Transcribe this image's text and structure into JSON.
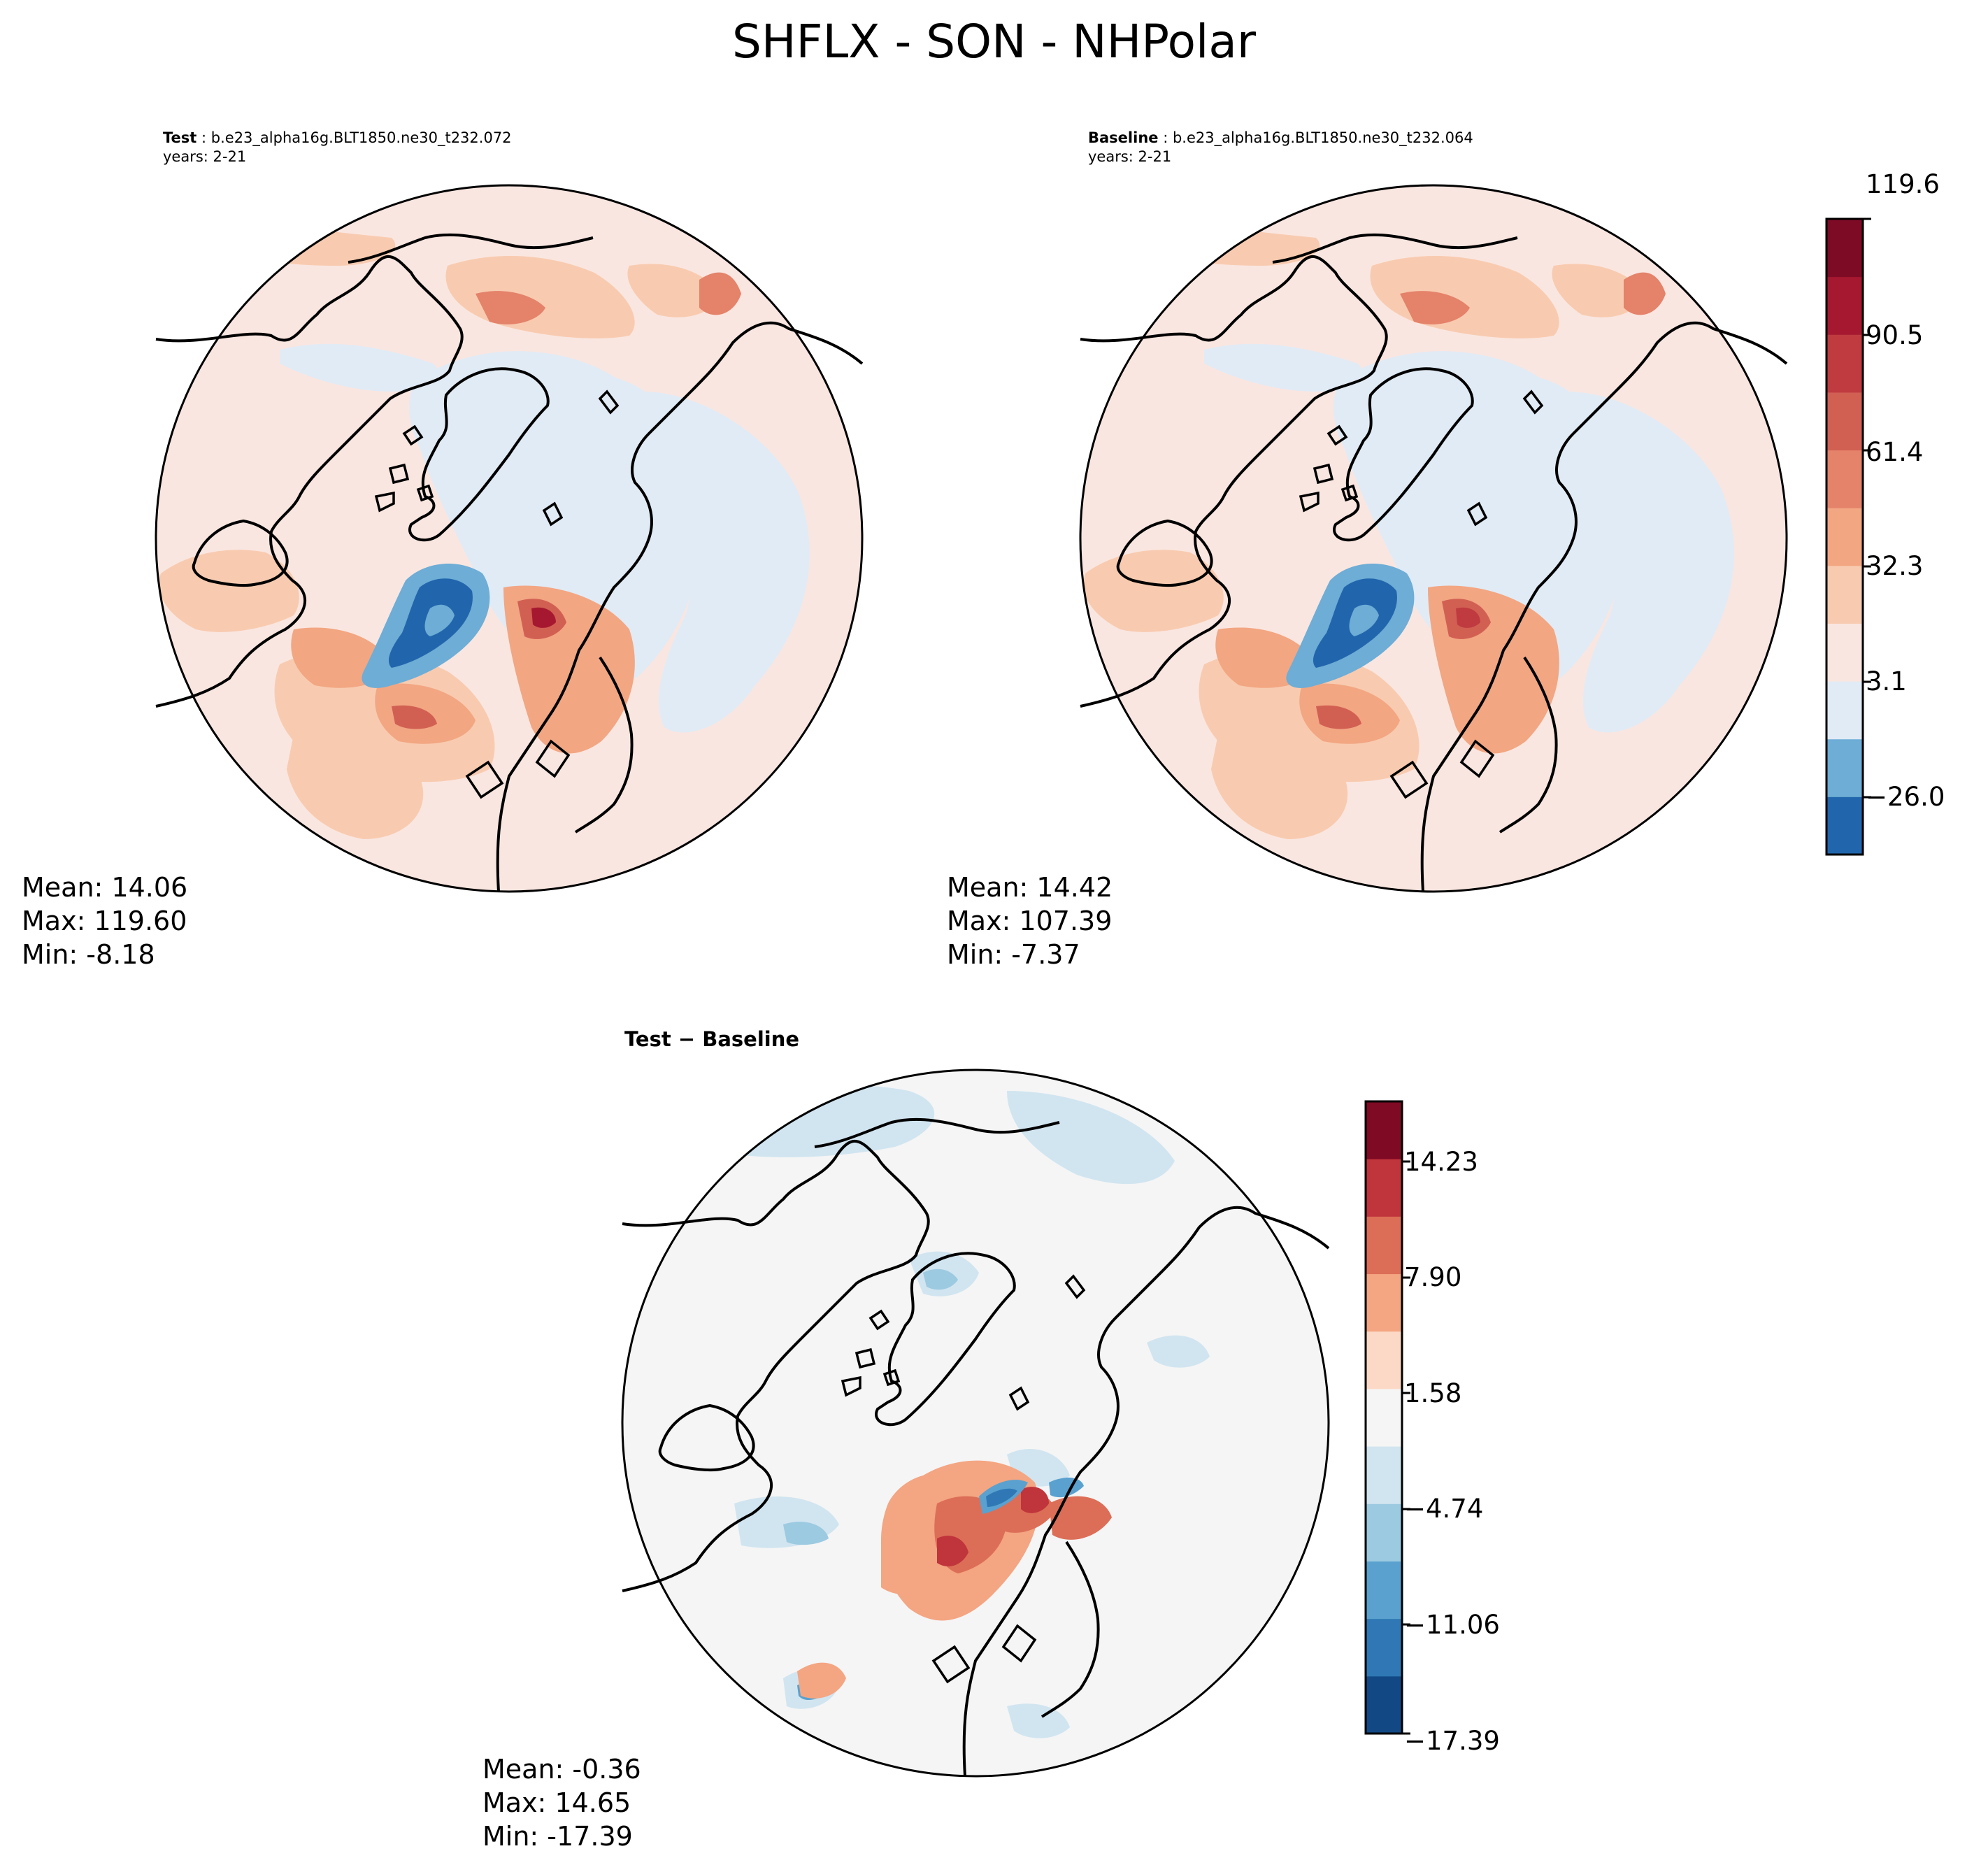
{
  "figure": {
    "title": "SHFLX - SON - NHPolar"
  },
  "panels": [
    {
      "id": "test",
      "label": "Test",
      "case": "b.e23_alpha16g.BLT1850.ne30_t232.072",
      "years": "years: 2-21",
      "stats": {
        "mean": "Mean: 14.06",
        "max": "Max: 119.60",
        "min": "Min: -8.18"
      }
    },
    {
      "id": "baseline",
      "label": "Baseline",
      "case": "b.e23_alpha16g.BLT1850.ne30_t232.064",
      "years": "years: 2-21",
      "stats": {
        "mean": "Mean: 14.42",
        "max": "Max: 107.39",
        "min": "Min: -7.37"
      }
    },
    {
      "id": "diff",
      "label": "Test − Baseline",
      "stats": {
        "mean": "Mean: -0.36",
        "max": "Max: 14.65",
        "min": "Min: -17.39"
      }
    }
  ],
  "colorbars": [
    {
      "id": "main",
      "ticks": [
        "119.6",
        "90.5",
        "61.4",
        "32.3",
        "3.1",
        "−26.0"
      ],
      "colors": [
        "#2166ac",
        "#6dadd6",
        "#e1ebf5",
        "#fae6e0",
        "#f8cbb0",
        "#f2a682",
        "#e4826a",
        "#d16053",
        "#bf3b40",
        "#a61830",
        "#7e0b26"
      ]
    },
    {
      "id": "diff",
      "ticks": [
        "14.23",
        "7.90",
        "1.58",
        "−4.74",
        "−11.06",
        "−17.39"
      ],
      "colors": [
        "#124984",
        "#2f78b5",
        "#5aa1cf",
        "#9ccae1",
        "#d1e5f0",
        "#f5f5f5",
        "#fbd9c6",
        "#f4a582",
        "#dc6e57",
        "#c0343c",
        "#7f0a23"
      ]
    }
  ],
  "legend": {
    "map_projection": "north-polar-stereographic",
    "fill_main_colors_meaning": "blue-low red-high"
  }
}
